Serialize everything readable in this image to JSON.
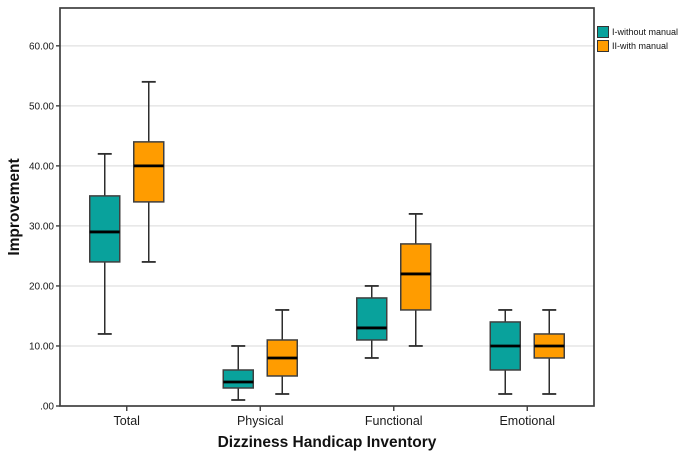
{
  "figure": {
    "background": "#ffffff"
  },
  "chart_data": {
    "type": "boxplot",
    "title": "",
    "xlabel": "Dizziness Handicap Inventory",
    "ylabel": "Improvement",
    "categories": [
      "Total",
      "Physical",
      "Functional",
      "Emotional"
    ],
    "y_ticks": [
      {
        "value": 0,
        "label": ".00"
      },
      {
        "value": 10,
        "label": "10.00"
      },
      {
        "value": 20,
        "label": "20.00"
      },
      {
        "value": 30,
        "label": "30.00"
      },
      {
        "value": 40,
        "label": "40.00"
      },
      {
        "value": 50,
        "label": "50.00"
      },
      {
        "value": 60,
        "label": "60.00"
      }
    ],
    "ylim": [
      0,
      66.3
    ],
    "grid": "horizontal",
    "legend_position": "top-right-outside",
    "series": [
      {
        "name": "I-without manual",
        "color": "#09a29c",
        "boxes": [
          {
            "category": "Total",
            "whisker_low": 12,
            "q1": 24,
            "median": 29,
            "q3": 35,
            "whisker_high": 42
          },
          {
            "category": "Physical",
            "whisker_low": 1,
            "q1": 3,
            "median": 4,
            "q3": 6,
            "whisker_high": 10
          },
          {
            "category": "Functional",
            "whisker_low": 8,
            "q1": 11,
            "median": 13,
            "q3": 18,
            "whisker_high": 20
          },
          {
            "category": "Emotional",
            "whisker_low": 2,
            "q1": 6,
            "median": 10,
            "q3": 14,
            "whisker_high": 16
          }
        ]
      },
      {
        "name": "II-with manual",
        "color": "#ff9c00",
        "boxes": [
          {
            "category": "Total",
            "whisker_low": 24,
            "q1": 34,
            "median": 40,
            "q3": 44,
            "whisker_high": 54
          },
          {
            "category": "Physical",
            "whisker_low": 2,
            "q1": 5,
            "median": 8,
            "q3": 11,
            "whisker_high": 16
          },
          {
            "category": "Functional",
            "whisker_low": 10,
            "q1": 16,
            "median": 22,
            "q3": 27,
            "whisker_high": 32
          },
          {
            "category": "Emotional",
            "whisker_low": 2,
            "q1": 8,
            "median": 10,
            "q3": 12,
            "whisker_high": 16
          }
        ]
      }
    ]
  },
  "style_colors": {
    "frame": "#3f3f3f",
    "gridline": "#d9d9d9",
    "box_border": "#3f3f3f",
    "median": "#000000",
    "whisker": "#2d2d2d",
    "tick_text": "#1a1a1a"
  }
}
